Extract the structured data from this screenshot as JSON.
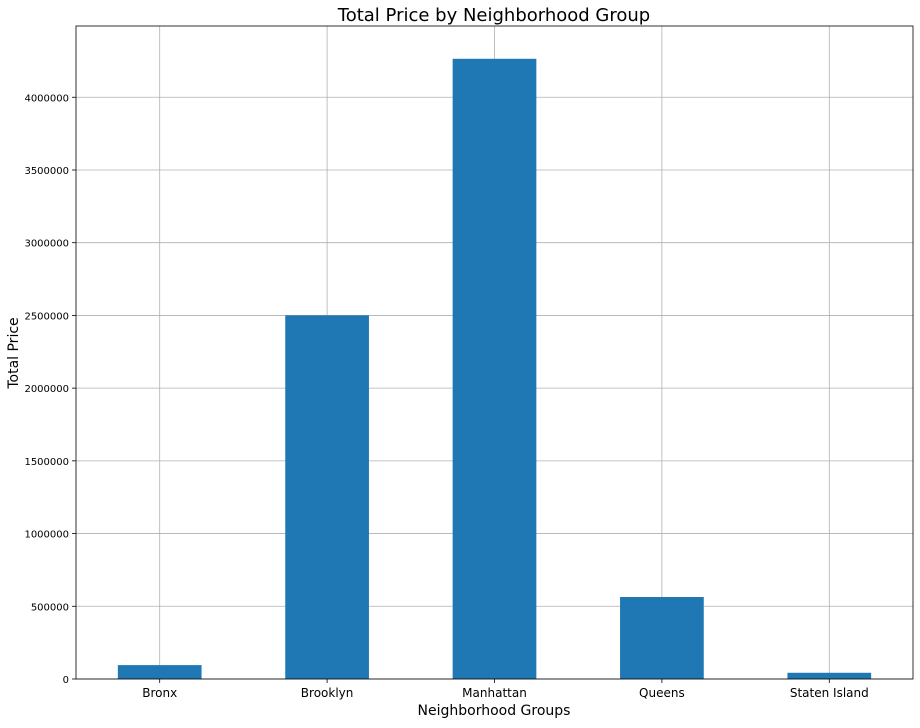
{
  "chart_data": {
    "type": "bar",
    "title": "Total Price by Neighborhood Group",
    "xlabel": "Neighborhood Groups",
    "ylabel": "Total Price",
    "categories": [
      "Bronx",
      "Brooklyn",
      "Manhattan",
      "Queens",
      "Staten Island"
    ],
    "values": [
      95459,
      2500600,
      4264527,
      563867,
      42825
    ],
    "ylim": [
      0,
      4490000
    ],
    "yticks": [
      0,
      500000,
      1000000,
      1500000,
      2000000,
      2500000,
      3000000,
      3500000,
      4000000
    ],
    "ytick_labels": [
      "0",
      "500000",
      "1000000",
      "1500000",
      "2000000",
      "2500000",
      "3000000",
      "3500000",
      "4000000"
    ],
    "grid": true,
    "colors": {
      "bar": "#1f77b4"
    }
  }
}
